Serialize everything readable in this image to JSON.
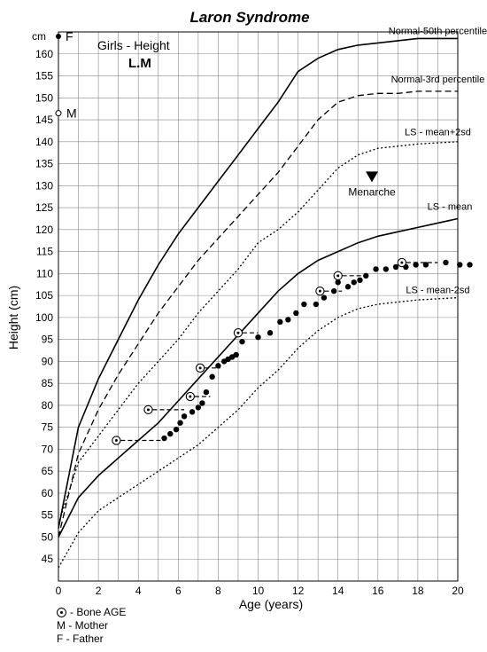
{
  "chart_data": {
    "type": "line",
    "title": "Laron Syndrome",
    "subtitle": "Girls - Height",
    "patient": "L.M",
    "xlabel": "Age (years)",
    "ylabel": "Height (cm)",
    "y_unit_label": "cm",
    "xlim": [
      0,
      20
    ],
    "ylim": [
      40,
      165
    ],
    "x_ticks": [
      "0",
      "2",
      "4",
      "6",
      "8",
      "10",
      "12",
      "14",
      "16",
      "18",
      "20"
    ],
    "y_ticks": [
      "45",
      "50",
      "55",
      "60",
      "65",
      "70",
      "75",
      "80",
      "85",
      "90",
      "95",
      "100",
      "105",
      "110",
      "115",
      "120",
      "125",
      "130",
      "135",
      "140",
      "145",
      "150",
      "155",
      "160"
    ],
    "grid": true,
    "series": [
      {
        "name": "Normal-50th percentile",
        "style": "solid",
        "x": [
          0,
          1,
          2,
          3,
          4,
          5,
          6,
          7,
          8,
          9,
          10,
          11,
          12,
          13,
          14,
          15,
          16,
          17,
          18,
          20
        ],
        "y": [
          52,
          75,
          86,
          95,
          104,
          112,
          119,
          125,
          131,
          137,
          143,
          149,
          156,
          159,
          161,
          162,
          162.5,
          163,
          163.5,
          163.5
        ]
      },
      {
        "name": "Normal-3rd percentile",
        "style": "dashed",
        "x": [
          0,
          1,
          2,
          3,
          4,
          5,
          6,
          7,
          8,
          9,
          10,
          11,
          12,
          13,
          14,
          15,
          16,
          17,
          18,
          20
        ],
        "y": [
          50,
          69,
          79,
          87,
          94,
          101,
          107,
          113,
          118,
          123,
          128,
          133,
          139,
          145,
          149,
          150.5,
          151,
          151,
          151.5,
          151.5
        ]
      },
      {
        "name": "LS - mean+2sd",
        "style": "dotted",
        "x": [
          0,
          1,
          2,
          3,
          4,
          5,
          6,
          7,
          8,
          9,
          10,
          11,
          12,
          13,
          14,
          15,
          16,
          17,
          18,
          20
        ],
        "y": [
          53,
          67,
          73,
          79,
          85,
          90,
          95,
          101,
          106,
          111,
          117,
          120,
          124,
          129,
          134,
          137,
          138.5,
          139,
          139.5,
          140
        ]
      },
      {
        "name": "LS - mean",
        "style": "solid",
        "x": [
          0,
          1,
          2,
          3,
          4,
          5,
          6,
          7,
          8,
          9,
          10,
          11,
          12,
          13,
          14,
          15,
          16,
          17,
          18,
          20
        ],
        "y": [
          50,
          59,
          64,
          68,
          72,
          76,
          81,
          86,
          91,
          96,
          101,
          106,
          110,
          113,
          115,
          117,
          118.5,
          119.5,
          120.5,
          122.5
        ]
      },
      {
        "name": "LS - mean-2sd",
        "style": "dotted",
        "x": [
          0,
          1,
          2,
          3,
          4,
          5,
          6,
          7,
          8,
          9,
          10,
          11,
          12,
          13,
          14,
          15,
          16,
          17,
          18,
          20
        ],
        "y": [
          43,
          51,
          56,
          59,
          62,
          65,
          68,
          71,
          75,
          79,
          84,
          88,
          93,
          97,
          100,
          102,
          103,
          103.5,
          104,
          104.5
        ]
      }
    ],
    "patient_points": {
      "x": [
        5.3,
        5.6,
        5.9,
        6.1,
        6.3,
        6.7,
        7.0,
        7.2,
        7.4,
        7.7,
        8.0,
        8.3,
        8.5,
        8.7,
        8.9,
        9.2,
        10.0,
        10.6,
        11.1,
        11.5,
        11.9,
        12.3,
        12.9,
        13.3,
        13.8,
        14.0,
        14.5,
        14.8,
        15.1,
        15.4,
        15.9,
        16.4,
        16.9,
        17.4,
        17.9,
        18.4,
        19.4,
        20.1,
        20.6
      ],
      "y": [
        72.5,
        73.5,
        74.5,
        76,
        77.5,
        78.5,
        79.5,
        80.5,
        83,
        86.5,
        89,
        90,
        90.5,
        91,
        91.5,
        94.5,
        95.5,
        96.5,
        99,
        99.5,
        101,
        103,
        103,
        104.5,
        106,
        108,
        107,
        108,
        108.5,
        109.5,
        111,
        111,
        111.5,
        111.5,
        112,
        112,
        112.5,
        112,
        112
      ]
    },
    "bone_age": [
      {
        "bone_age": 2.9,
        "age": 5.3,
        "height": 72
      },
      {
        "bone_age": 4.5,
        "age": 6.3,
        "height": 79
      },
      {
        "bone_age": 6.6,
        "age": 7.6,
        "height": 82
      },
      {
        "bone_age": 7.1,
        "age": 8.1,
        "height": 88.5
      },
      {
        "bone_age": 9.0,
        "age": 10.0,
        "height": 96.5
      },
      {
        "bone_age": 13.1,
        "age": 14.2,
        "height": 106
      },
      {
        "bone_age": 14.0,
        "age": 15.2,
        "height": 109.5
      },
      {
        "bone_age": 17.2,
        "age": 19.0,
        "height": 112.5
      }
    ],
    "menarche": {
      "label": "Menarche",
      "age": 15.7,
      "height": 132
    },
    "mother": {
      "label": "M",
      "height": 146.5
    },
    "father": {
      "label": "F",
      "height": 164
    },
    "legend": {
      "bone_age": "- Bone AGE",
      "mother": "M - Mother",
      "father": "F -  Father"
    },
    "colors": {
      "line": "#000000",
      "grid": "#888888",
      "background": "#ffffff"
    }
  }
}
